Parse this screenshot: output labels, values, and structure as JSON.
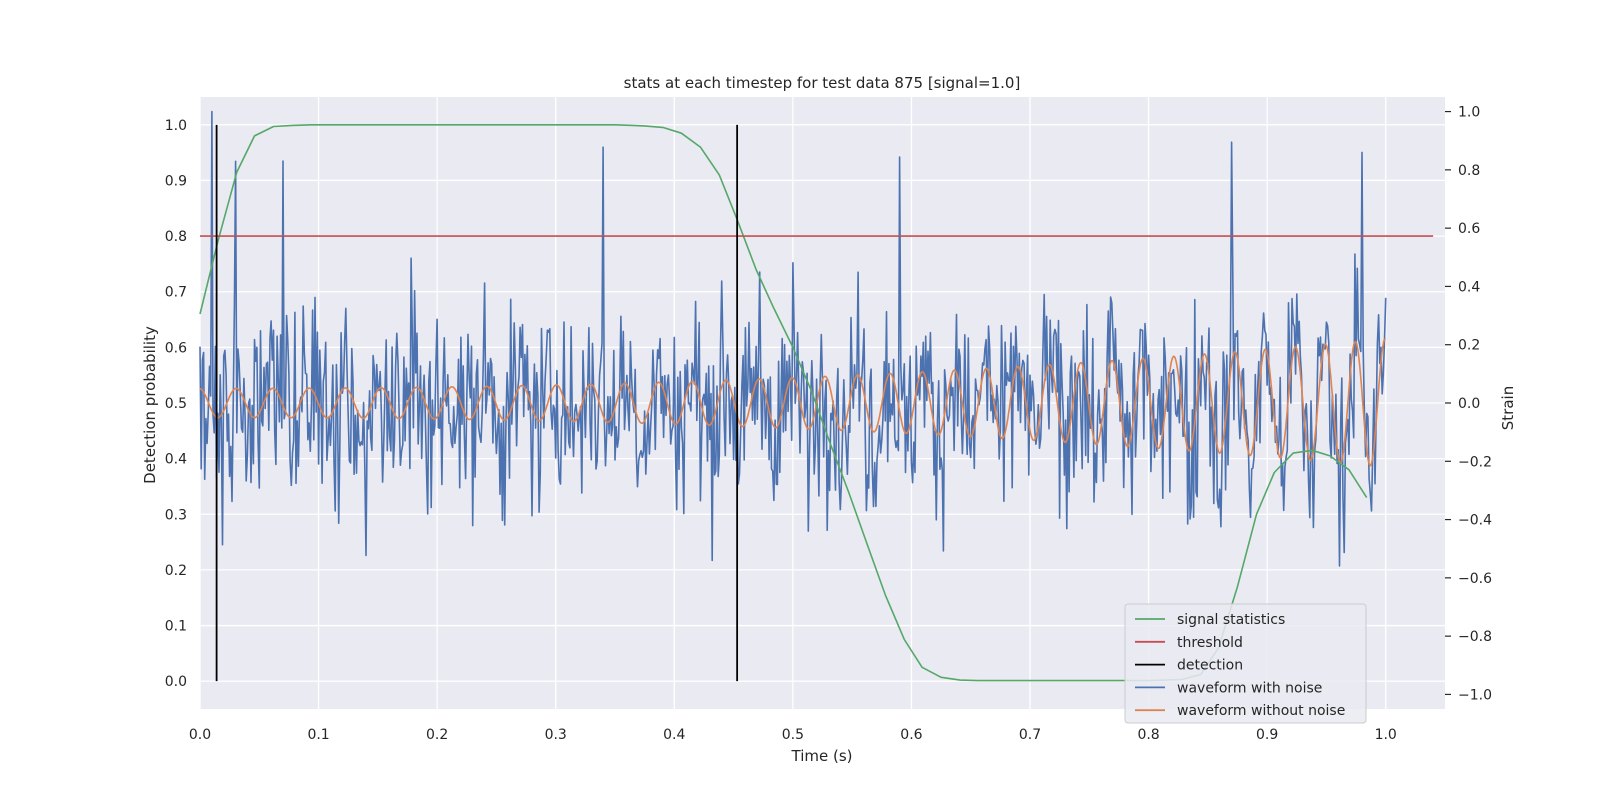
{
  "chart_data": {
    "type": "line",
    "title": "stats at each timestep for test data 875 [signal=1.0]",
    "xlabel": "Time (s)",
    "ylabel_left": "Detection probability",
    "ylabel_right": "Strain",
    "xlim": [
      0.0,
      1.05
    ],
    "ylim_left": [
      -0.05,
      1.05
    ],
    "ylim_right": [
      -1.05,
      1.05
    ],
    "x_ticks": [
      "0.0",
      "0.1",
      "0.2",
      "0.3",
      "0.4",
      "0.5",
      "0.6",
      "0.7",
      "0.8",
      "0.9",
      "1.0"
    ],
    "y_left_ticks": [
      "0.0",
      "0.1",
      "0.2",
      "0.3",
      "0.4",
      "0.5",
      "0.6",
      "0.7",
      "0.8",
      "0.9",
      "1.0"
    ],
    "y_right_ticks": [
      "−1.0",
      "−0.8",
      "−0.6",
      "−0.4",
      "−0.2",
      "0.0",
      "0.2",
      "0.4",
      "0.6",
      "0.8",
      "1.0"
    ],
    "grid": true,
    "legend_position": "lower-right",
    "colors": {
      "background": "#eaeaf2",
      "grid": "#ffffff",
      "signal_statistics": "#55a868",
      "threshold": "#c44e52",
      "detection": "#000000",
      "waveform_with_noise": "#4c72b0",
      "waveform_without_noise": "#dd8452"
    },
    "series": [
      {
        "name": "signal statistics",
        "axis": "left",
        "x": [
          0.0,
          0.015,
          0.031,
          0.046,
          0.062,
          0.078,
          0.094,
          0.11,
          0.2,
          0.3,
          0.35,
          0.375,
          0.391,
          0.406,
          0.422,
          0.438,
          0.453,
          0.469,
          0.484,
          0.5,
          0.516,
          0.531,
          0.547,
          0.562,
          0.578,
          0.594,
          0.609,
          0.625,
          0.641,
          0.656,
          0.7,
          0.8,
          0.828,
          0.844,
          0.859,
          0.875,
          0.891,
          0.906,
          0.922,
          0.938,
          0.953,
          0.969,
          0.984
        ],
        "values": [
          0.66,
          0.79,
          0.915,
          0.98,
          0.997,
          0.999,
          1.0,
          1.0,
          1.0,
          1.0,
          1.0,
          0.998,
          0.995,
          0.985,
          0.96,
          0.91,
          0.83,
          0.74,
          0.67,
          0.6,
          0.52,
          0.43,
          0.34,
          0.25,
          0.155,
          0.075,
          0.025,
          0.007,
          0.002,
          0.001,
          0.001,
          0.001,
          0.003,
          0.012,
          0.06,
          0.17,
          0.3,
          0.375,
          0.41,
          0.415,
          0.405,
          0.38,
          0.33
        ]
      },
      {
        "name": "threshold",
        "axis": "left",
        "x": [
          0.0,
          1.04
        ],
        "values": [
          0.8,
          0.8
        ]
      },
      {
        "name": "detection",
        "axis": "left",
        "x": [
          0.014,
          0.453
        ],
        "y_range": [
          0.0,
          1.0
        ]
      },
      {
        "name": "waveform with noise",
        "axis": "right",
        "x_range": [
          0.0,
          1.0
        ],
        "noise_seed": 875,
        "noise_scale": 0.22,
        "peak_values": [
          1.0,
          0.905,
          0.895,
          0.87,
          0.86,
          0.855,
          0.83
        ]
      },
      {
        "name": "waveform without noise",
        "axis": "right",
        "x_range": [
          0.0,
          1.0
        ],
        "frequency_hz": [
          32,
          40
        ],
        "amplitude": [
          0.05,
          0.22
        ]
      }
    ],
    "legend": [
      "signal statistics",
      "threshold",
      "detection",
      "waveform with noise",
      "waveform without noise"
    ]
  }
}
